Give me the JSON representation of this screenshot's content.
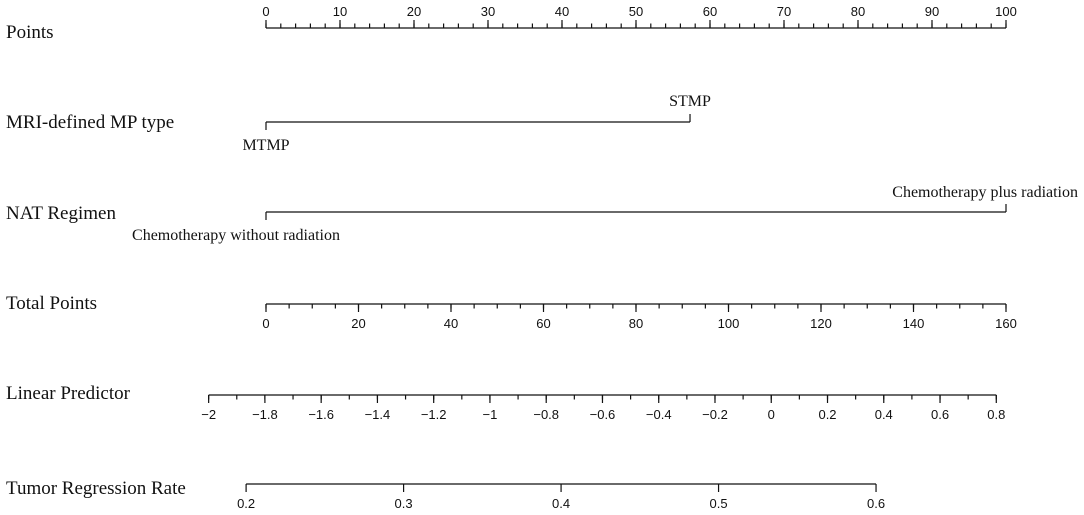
{
  "chart_data": {
    "type": "nomogram",
    "rows": [
      {
        "id": "points",
        "label": "Points",
        "kind": "scale",
        "min": 0,
        "max": 100,
        "major": [
          0,
          10,
          20,
          30,
          40,
          50,
          60,
          70,
          80,
          90,
          100
        ],
        "major_labels": [
          "0",
          "10",
          "20",
          "30",
          "40",
          "50",
          "60",
          "70",
          "80",
          "90",
          "100"
        ],
        "minor_step": 2,
        "labels_position": "above",
        "points_start": 0,
        "points_end": 100
      },
      {
        "id": "mp_type",
        "label": "MRI-defined MP type",
        "kind": "categorical",
        "categories": [
          {
            "name": "MTMP",
            "points": 0,
            "label_position": "below"
          },
          {
            "name": "STMP",
            "points": 57.3,
            "label_position": "above"
          }
        ]
      },
      {
        "id": "nat_regimen",
        "label": "NAT Regimen",
        "kind": "categorical",
        "categories": [
          {
            "name": "Chemotherapy without radiation",
            "points": 0,
            "label_position": "below"
          },
          {
            "name": "Chemotherapy plus radiation",
            "points": 100,
            "label_position": "above"
          }
        ]
      },
      {
        "id": "total_points",
        "label": "Total Points",
        "kind": "scale",
        "min": 0,
        "max": 160,
        "major": [
          0,
          20,
          40,
          60,
          80,
          100,
          120,
          140,
          160
        ],
        "major_labels": [
          "0",
          "20",
          "40",
          "60",
          "80",
          "100",
          "120",
          "140",
          "160"
        ],
        "minor_step": 5,
        "labels_position": "below",
        "total_start": 0,
        "total_end": 160
      },
      {
        "id": "linear_predictor",
        "label": "Linear Predictor",
        "kind": "scale",
        "min": -2,
        "max": 0.8,
        "major": [
          -2,
          -1.8,
          -1.6,
          -1.4,
          -1.2,
          -1,
          -0.8,
          -0.6,
          -0.4,
          -0.2,
          0,
          0.2,
          0.4,
          0.6,
          0.8
        ],
        "major_labels": [
          "−2",
          "−1.8",
          "−1.6",
          "−1.4",
          "−1.2",
          "−1",
          "−0.8",
          "−0.6",
          "−0.4",
          "−0.2",
          "0",
          "0.2",
          "0.4",
          "0.6",
          "0.8"
        ],
        "minor_step": 0.1,
        "labels_position": "below",
        "total_at_min": -12.4,
        "total_at_max": 157.9
      },
      {
        "id": "regression_rate",
        "label": "Tumor Regression Rate",
        "kind": "scale",
        "min": 0.2,
        "max": 0.6,
        "major": [
          0.2,
          0.3,
          0.4,
          0.5,
          0.6
        ],
        "major_labels": [
          "0.2",
          "0.3",
          "0.4",
          "0.5",
          "0.6"
        ],
        "minor_step": null,
        "labels_position": "below",
        "total_at_min": -4.3,
        "total_at_max": 131.9
      }
    ]
  }
}
